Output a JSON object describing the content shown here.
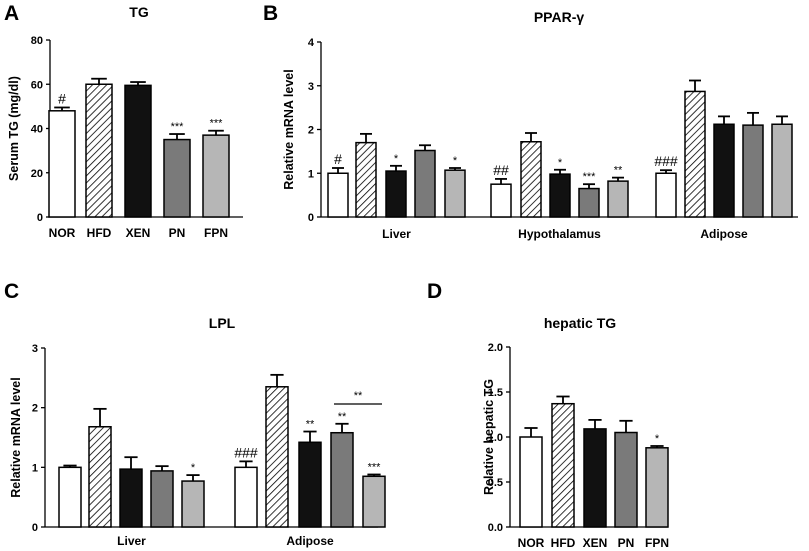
{
  "colors": {
    "NOR": "#ffffff",
    "HFD": "hatch",
    "XEN": "#111111",
    "PN": "#7a7a7a",
    "FPN": "#b6b6b6"
  },
  "chart_data": [
    {
      "panel": "A",
      "type": "bar",
      "title": "TG",
      "ylabel": "Serum  TG (mg/dl)",
      "xlabel": "",
      "ylim": [
        0,
        80
      ],
      "yticks": [
        "0",
        "20",
        "40",
        "60",
        "80"
      ],
      "groups": [
        {
          "label": "",
          "bars": [
            {
              "name": "NOR",
              "value": 48,
              "error": 1.5,
              "sig": "#"
            },
            {
              "name": "HFD",
              "value": 60,
              "error": 2.5,
              "sig": ""
            },
            {
              "name": "XEN",
              "value": 59.5,
              "error": 1.5,
              "sig": ""
            },
            {
              "name": "PN",
              "value": 35,
              "error": 2.5,
              "sig": "***"
            },
            {
              "name": "FPN",
              "value": 37,
              "error": 2,
              "sig": "***"
            }
          ]
        }
      ],
      "categories": [
        "NOR",
        "HFD",
        "XEN",
        "PN",
        "FPN"
      ]
    },
    {
      "panel": "B",
      "type": "bar",
      "title": "PPAR-γ",
      "ylabel": "Relative mRNA level",
      "xlabel": "",
      "ylim": [
        0,
        4
      ],
      "yticks": [
        "0",
        "1",
        "2",
        "3",
        "4"
      ],
      "groups": [
        {
          "label": "Liver",
          "bars": [
            {
              "name": "NOR",
              "value": 1.0,
              "error": 0.12,
              "sig": "#"
            },
            {
              "name": "HFD",
              "value": 1.7,
              "error": 0.2,
              "sig": ""
            },
            {
              "name": "XEN",
              "value": 1.05,
              "error": 0.12,
              "sig": "*"
            },
            {
              "name": "PN",
              "value": 1.52,
              "error": 0.12,
              "sig": ""
            },
            {
              "name": "FPN",
              "value": 1.07,
              "error": 0.05,
              "sig": "*"
            }
          ]
        },
        {
          "label": "Hypothalamus",
          "bars": [
            {
              "name": "NOR",
              "value": 0.75,
              "error": 0.12,
              "sig": "##"
            },
            {
              "name": "HFD",
              "value": 1.72,
              "error": 0.2,
              "sig": ""
            },
            {
              "name": "XEN",
              "value": 0.98,
              "error": 0.1,
              "sig": "*"
            },
            {
              "name": "PN",
              "value": 0.65,
              "error": 0.1,
              "sig": "***"
            },
            {
              "name": "FPN",
              "value": 0.82,
              "error": 0.08,
              "sig": "**"
            }
          ]
        },
        {
          "label": "Adipose",
          "bars": [
            {
              "name": "NOR",
              "value": 1.0,
              "error": 0.07,
              "sig": "###"
            },
            {
              "name": "HFD",
              "value": 2.87,
              "error": 0.25,
              "sig": ""
            },
            {
              "name": "XEN",
              "value": 2.12,
              "error": 0.18,
              "sig": ""
            },
            {
              "name": "PN",
              "value": 2.1,
              "error": 0.28,
              "sig": ""
            },
            {
              "name": "FPN",
              "value": 2.12,
              "error": 0.18,
              "sig": ""
            }
          ]
        }
      ]
    },
    {
      "panel": "C",
      "type": "bar",
      "title": "LPL",
      "ylabel": "Relative mRNA level",
      "xlabel": "",
      "ylim": [
        0,
        3
      ],
      "yticks": [
        "0",
        "1",
        "2",
        "3"
      ],
      "groups": [
        {
          "label": "Liver",
          "bars": [
            {
              "name": "NOR",
              "value": 1.0,
              "error": 0.03,
              "sig": ""
            },
            {
              "name": "HFD",
              "value": 1.68,
              "error": 0.3,
              "sig": ""
            },
            {
              "name": "XEN",
              "value": 0.97,
              "error": 0.2,
              "sig": ""
            },
            {
              "name": "PN",
              "value": 0.94,
              "error": 0.08,
              "sig": ""
            },
            {
              "name": "FPN",
              "value": 0.77,
              "error": 0.1,
              "sig": "*"
            }
          ]
        },
        {
          "label": "Adipose",
          "bars": [
            {
              "name": "NOR",
              "value": 1.0,
              "error": 0.1,
              "sig": "###"
            },
            {
              "name": "HFD",
              "value": 2.35,
              "error": 0.2,
              "sig": ""
            },
            {
              "name": "XEN",
              "value": 1.42,
              "error": 0.18,
              "sig": "**"
            },
            {
              "name": "PN",
              "value": 1.58,
              "error": 0.15,
              "sig": "**"
            },
            {
              "name": "FPN",
              "value": 0.85,
              "error": 0.03,
              "sig": "***"
            }
          ]
        }
      ],
      "brackets": [
        {
          "group": "Adipose",
          "from": "PN",
          "to": "FPN",
          "sig": "**"
        }
      ]
    },
    {
      "panel": "D",
      "type": "bar",
      "title": "hepatic TG",
      "ylabel": "Relative hepatic TG",
      "xlabel": "",
      "ylim": [
        0,
        2.0
      ],
      "yticks": [
        "0.0",
        "0.5",
        "1.0",
        "1.5",
        "2.0"
      ],
      "groups": [
        {
          "label": "",
          "bars": [
            {
              "name": "NOR",
              "value": 1.0,
              "error": 0.1,
              "sig": ""
            },
            {
              "name": "HFD",
              "value": 1.37,
              "error": 0.08,
              "sig": ""
            },
            {
              "name": "XEN",
              "value": 1.09,
              "error": 0.1,
              "sig": ""
            },
            {
              "name": "PN",
              "value": 1.05,
              "error": 0.13,
              "sig": ""
            },
            {
              "name": "FPN",
              "value": 0.88,
              "error": 0.02,
              "sig": "*"
            }
          ]
        }
      ],
      "categories": [
        "NOR",
        "HFD",
        "XEN",
        "PN",
        "FPN"
      ]
    }
  ]
}
